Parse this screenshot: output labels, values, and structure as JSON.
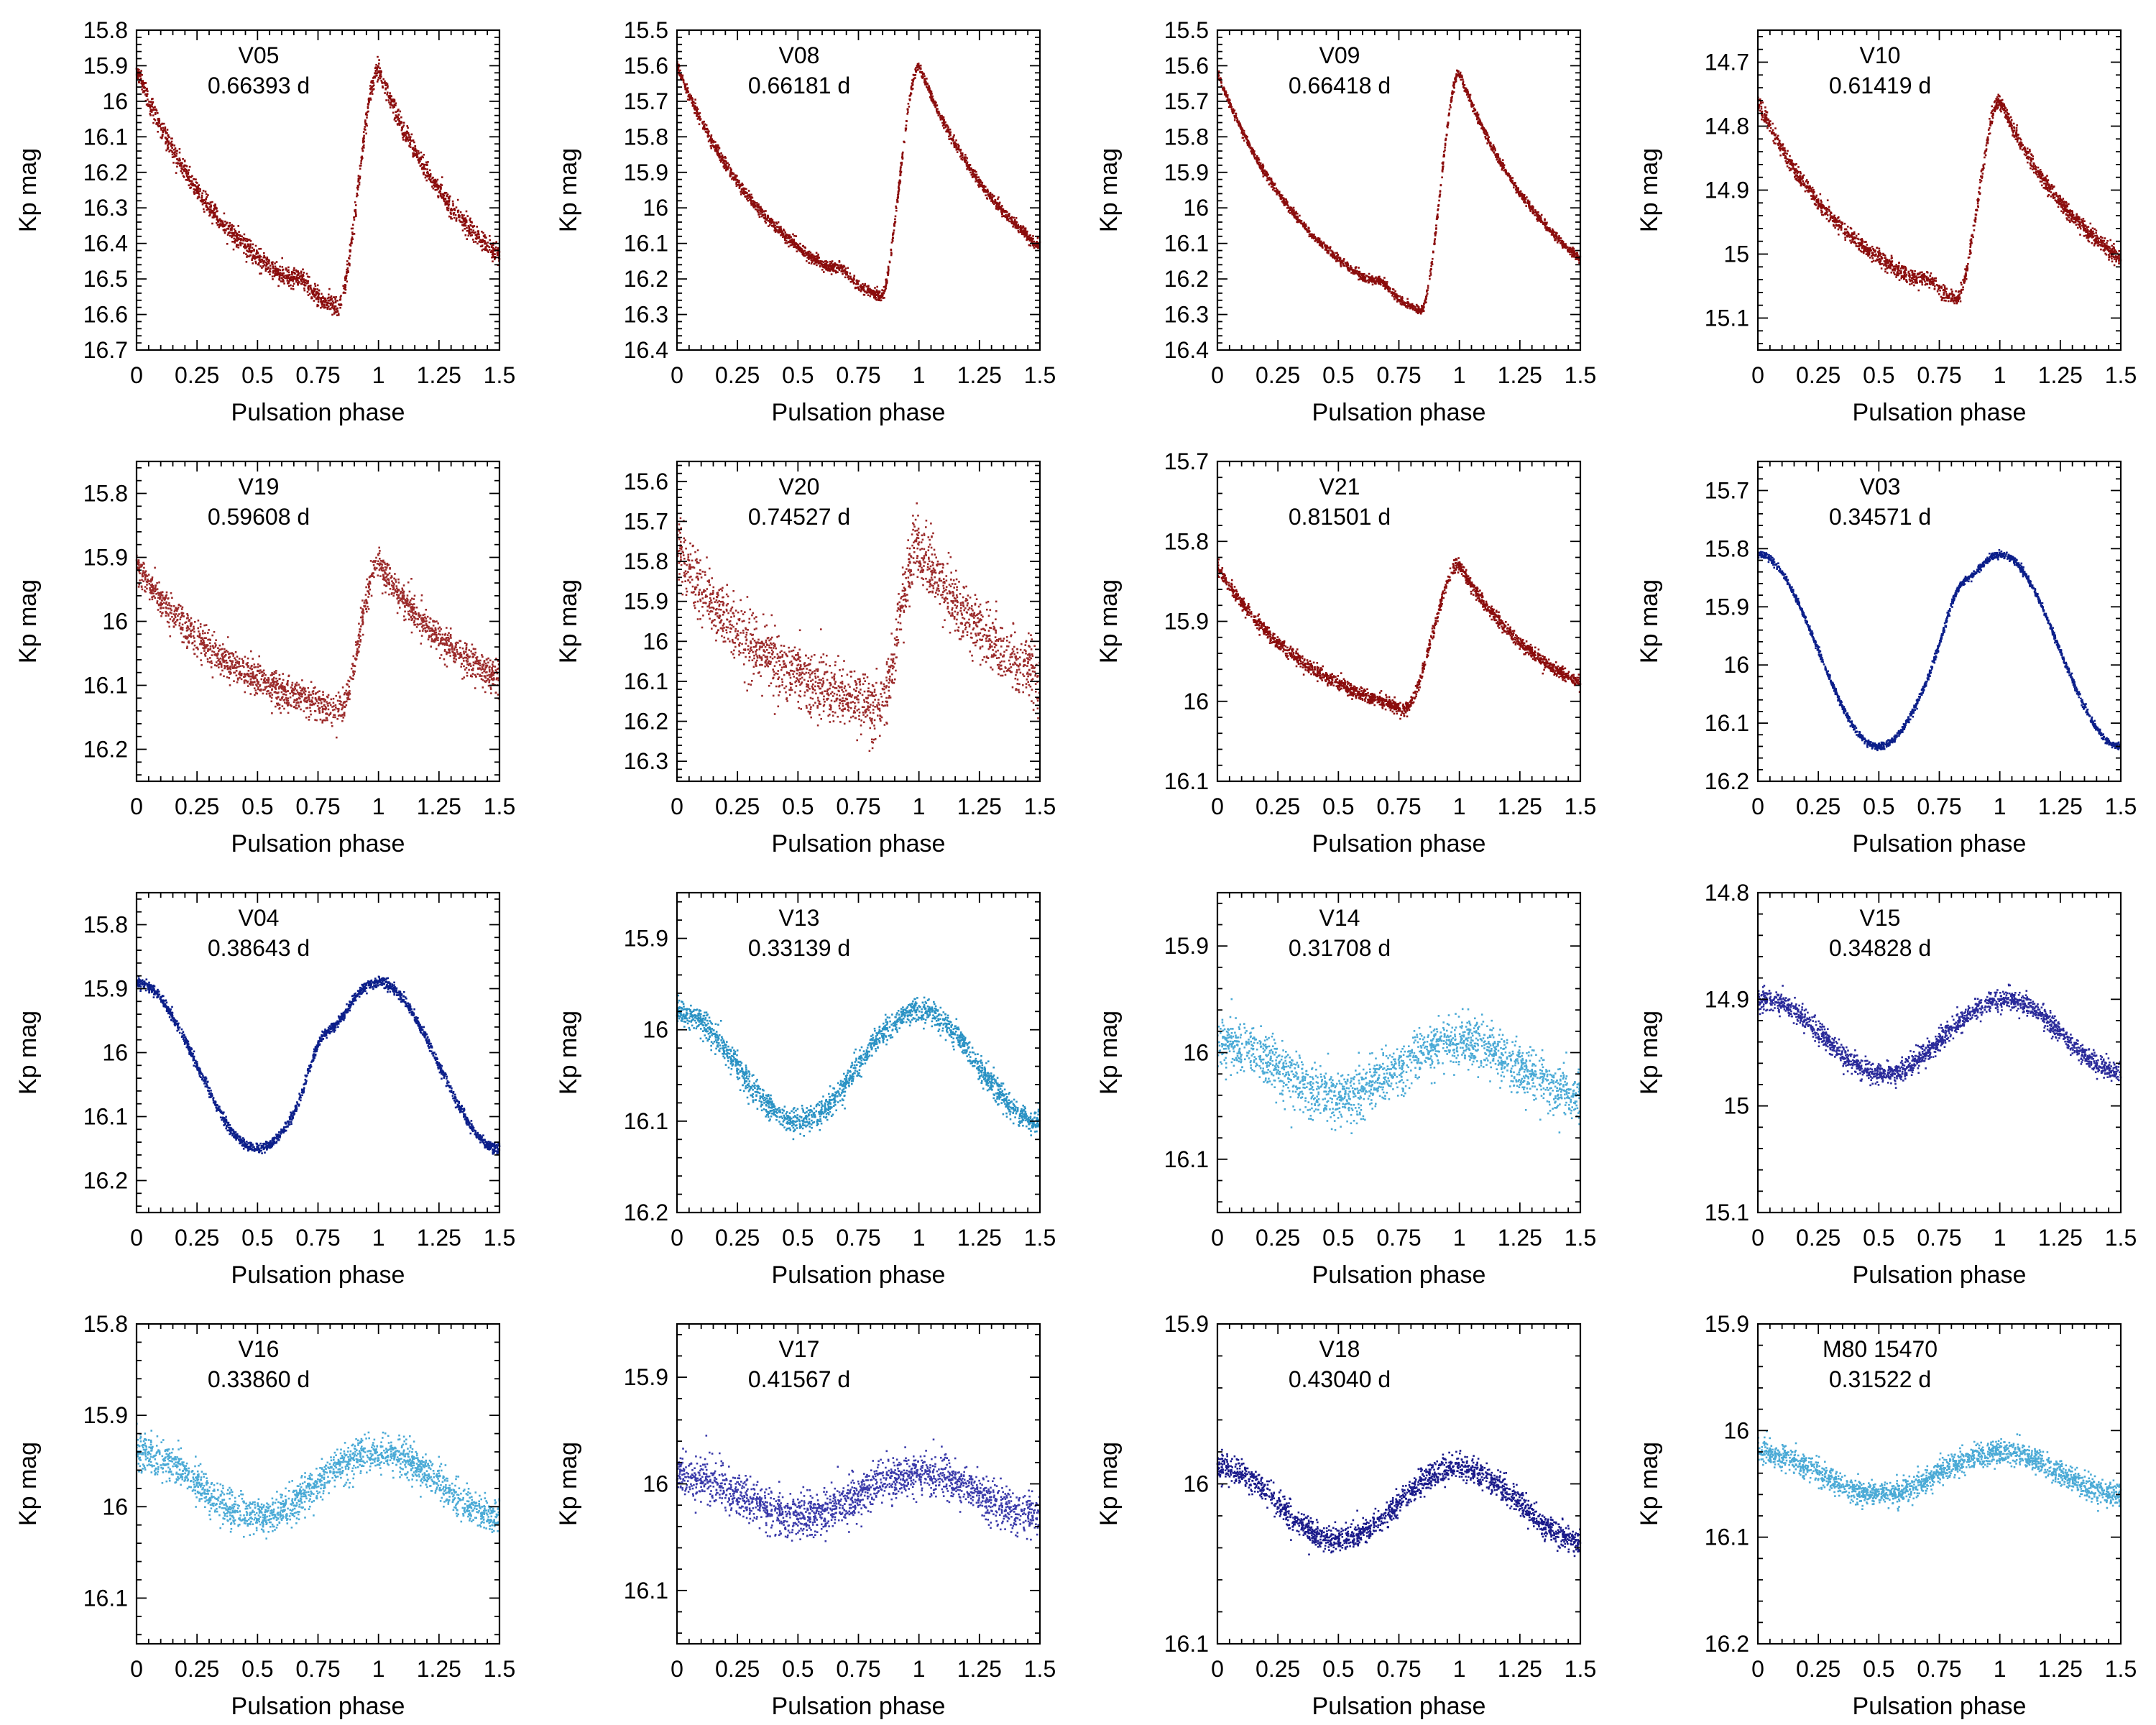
{
  "figure": {
    "xlabel": "Pulsation phase",
    "ylabel": "Kp mag"
  },
  "chart_data": [
    {
      "type": "scatter",
      "star": "V05",
      "period": "0.66393 d",
      "color": "#8b0d0d",
      "shape": "rrab",
      "ylim": [
        15.8,
        16.7
      ],
      "yticks": [
        "15.8",
        "15.9",
        "16",
        "16.1",
        "16.2",
        "16.3",
        "16.4",
        "16.5",
        "16.6",
        "16.7"
      ],
      "xticks": [
        "0",
        "0.25",
        "0.5",
        "0.75",
        "1",
        "1.25",
        "1.5"
      ],
      "xlim": [
        0,
        1.5
      ],
      "max_mag": 15.91,
      "min_mag": 16.58,
      "min_phase": 0.83,
      "bump_phase": 0.68,
      "bump_depth": 0.35,
      "scatter": 0.014,
      "n_points": 1800
    },
    {
      "type": "scatter",
      "star": "V08",
      "period": "0.66181 d",
      "color": "#8b0d0d",
      "shape": "rrab",
      "ylim": [
        15.5,
        16.4
      ],
      "yticks": [
        "15.5",
        "15.6",
        "15.7",
        "15.8",
        "15.9",
        "16",
        "16.1",
        "16.2",
        "16.3",
        "16.4"
      ],
      "xticks": [
        "0",
        "0.25",
        "0.5",
        "0.75",
        "1",
        "1.25",
        "1.5"
      ],
      "xlim": [
        0,
        1.5
      ],
      "max_mag": 15.6,
      "min_mag": 16.25,
      "min_phase": 0.84,
      "bump_phase": 0.68,
      "bump_depth": 0.3,
      "scatter": 0.008,
      "n_points": 1800
    },
    {
      "type": "scatter",
      "star": "V09",
      "period": "0.66418 d",
      "color": "#8b0d0d",
      "shape": "rrab",
      "ylim": [
        15.5,
        16.4
      ],
      "yticks": [
        "15.5",
        "15.6",
        "15.7",
        "15.8",
        "15.9",
        "16",
        "16.1",
        "16.2",
        "16.3",
        "16.4"
      ],
      "xticks": [
        "0",
        "0.25",
        "0.5",
        "0.75",
        "1",
        "1.25",
        "1.5"
      ],
      "xlim": [
        0,
        1.5
      ],
      "max_mag": 15.62,
      "min_mag": 16.29,
      "min_phase": 0.84,
      "bump_phase": 0.68,
      "bump_depth": 0.3,
      "scatter": 0.006,
      "n_points": 1800
    },
    {
      "type": "scatter",
      "star": "V10",
      "period": "0.61419 d",
      "color": "#8b0d0d",
      "shape": "rrab",
      "ylim": [
        14.65,
        15.15
      ],
      "yticks": [
        "14.7",
        "14.8",
        "14.9",
        "15",
        "15.1"
      ],
      "xticks": [
        "0",
        "0.25",
        "0.5",
        "0.75",
        "1",
        "1.25",
        "1.5"
      ],
      "xlim": [
        0,
        1.5
      ],
      "max_mag": 14.76,
      "min_mag": 15.07,
      "min_phase": 0.82,
      "bump_phase": 0.7,
      "bump_depth": 0.3,
      "scatter": 0.006,
      "n_points": 1800
    },
    {
      "type": "scatter",
      "star": "V19",
      "period": "0.59608 d",
      "color": "#9b2a2a",
      "shape": "rrab",
      "ylim": [
        15.75,
        16.25
      ],
      "yticks": [
        "15.8",
        "15.9",
        "16",
        "16.1",
        "16.2"
      ],
      "xticks": [
        "0",
        "0.25",
        "0.5",
        "0.75",
        "1",
        "1.25",
        "1.5"
      ],
      "xlim": [
        0,
        1.5
      ],
      "max_mag": 15.91,
      "min_mag": 16.14,
      "min_phase": 0.84,
      "bump_phase": 0.68,
      "bump_depth": 0.12,
      "scatter": 0.013,
      "n_points": 1800
    },
    {
      "type": "scatter",
      "star": "V20",
      "period": "0.74527 d",
      "color": "#9b2a2a",
      "shape": "rrab",
      "ylim": [
        15.55,
        16.35
      ],
      "yticks": [
        "15.6",
        "15.7",
        "15.8",
        "15.9",
        "16",
        "16.1",
        "16.2",
        "16.3"
      ],
      "xticks": [
        "0",
        "0.25",
        "0.5",
        "0.75",
        "1",
        "1.25",
        "1.5"
      ],
      "xlim": [
        0,
        1.5
      ],
      "max_mag": 15.77,
      "min_mag": 16.17,
      "min_phase": 0.83,
      "bump_phase": 0.68,
      "bump_depth": 0.1,
      "scatter": 0.04,
      "n_points": 1800
    },
    {
      "type": "scatter",
      "star": "V21",
      "period": "0.81501 d",
      "color": "#8b0d0d",
      "shape": "rrab",
      "ylim": [
        15.7,
        16.1
      ],
      "yticks": [
        "15.7",
        "15.8",
        "15.9",
        "16",
        "16.1"
      ],
      "xticks": [
        "0",
        "0.25",
        "0.5",
        "0.75",
        "1",
        "1.25",
        "1.5"
      ],
      "xlim": [
        0,
        1.5
      ],
      "max_mag": 15.83,
      "min_mag": 16.01,
      "min_phase": 0.77,
      "bump_phase": 0.68,
      "bump_depth": 0.05,
      "scatter": 0.004,
      "n_points": 1800
    },
    {
      "type": "scatter",
      "star": "V03",
      "period": "0.34571 d",
      "color": "#0c1f8a",
      "shape": "rrc",
      "ylim": [
        15.65,
        16.2
      ],
      "yticks": [
        "15.7",
        "15.8",
        "15.9",
        "16",
        "16.1",
        "16.2"
      ],
      "xticks": [
        "0",
        "0.25",
        "0.5",
        "0.75",
        "1",
        "1.25",
        "1.5"
      ],
      "xlim": [
        0,
        1.5
      ],
      "max_mag": 15.81,
      "min_mag": 16.14,
      "min_phase": 0.58,
      "hump_phase": 0.85,
      "hump_mag": 15.84,
      "scatter": 0.003,
      "n_points": 1800
    },
    {
      "type": "scatter",
      "star": "V04",
      "period": "0.38643 d",
      "color": "#0c1f8a",
      "shape": "rrc",
      "ylim": [
        15.75,
        16.25
      ],
      "yticks": [
        "15.8",
        "15.9",
        "16",
        "16.1",
        "16.2"
      ],
      "xticks": [
        "0",
        "0.25",
        "0.5",
        "0.75",
        "1",
        "1.25",
        "1.5"
      ],
      "xlim": [
        0,
        1.5
      ],
      "max_mag": 15.89,
      "min_mag": 16.15,
      "min_phase": 0.52,
      "hump_phase": 0.78,
      "hump_mag": 15.95,
      "scatter": 0.004,
      "n_points": 1800
    },
    {
      "type": "scatter",
      "star": "V13",
      "period": "0.33139 d",
      "color": "#2a92c4",
      "shape": "sine",
      "ylim": [
        15.85,
        16.2
      ],
      "yticks": [
        "15.9",
        "16",
        "16.1",
        "16.2"
      ],
      "xticks": [
        "0",
        "0.25",
        "0.5",
        "0.75",
        "1",
        "1.25",
        "1.5"
      ],
      "xlim": [
        0,
        1.5
      ],
      "max_mag": 15.98,
      "min_mag": 16.1,
      "min_phase": 0.5,
      "scatter": 0.007,
      "n_points": 1800
    },
    {
      "type": "scatter",
      "star": "V14",
      "period": "0.31708 d",
      "color": "#4aaad6",
      "shape": "sine",
      "ylim": [
        15.85,
        16.15
      ],
      "yticks": [
        "15.9",
        "16",
        "16.1"
      ],
      "xticks": [
        "0",
        "0.25",
        "0.5",
        "0.75",
        "1",
        "1.25",
        "1.5"
      ],
      "xlim": [
        0,
        1.5
      ],
      "max_mag": 15.99,
      "min_mag": 16.04,
      "min_phase": 0.5,
      "scatter": 0.012,
      "n_points": 1800
    },
    {
      "type": "scatter",
      "star": "V15",
      "period": "0.34828 d",
      "color": "#2a2a9a",
      "shape": "sine",
      "ylim": [
        14.8,
        15.1
      ],
      "yticks": [
        "14.8",
        "14.9",
        "15",
        "15.1"
      ],
      "xticks": [
        "0",
        "0.25",
        "0.5",
        "0.75",
        "1",
        "1.25",
        "1.5"
      ],
      "xlim": [
        0,
        1.5
      ],
      "max_mag": 14.9,
      "min_mag": 14.97,
      "min_phase": 0.52,
      "scatter": 0.005,
      "n_points": 1800
    },
    {
      "type": "scatter",
      "star": "V16",
      "period": "0.33860 d",
      "color": "#4aaad6",
      "shape": "sine",
      "ylim": [
        15.8,
        16.15
      ],
      "yticks": [
        "15.8",
        "15.9",
        "16",
        "16.1"
      ],
      "xticks": [
        "0",
        "0.25",
        "0.5",
        "0.75",
        "1",
        "1.25",
        "1.5"
      ],
      "xlim": [
        0,
        1.5
      ],
      "max_mag": 15.94,
      "min_mag": 16.01,
      "min_phase": 0.5,
      "scatter": 0.01,
      "n_points": 1800
    },
    {
      "type": "scatter",
      "star": "V17",
      "period": "0.41567 d",
      "color": "#3a3aaa",
      "shape": "sine",
      "ylim": [
        15.85,
        16.15
      ],
      "yticks": [
        "15.9",
        "16",
        "16.1"
      ],
      "xticks": [
        "0",
        "0.25",
        "0.5",
        "0.75",
        "1",
        "1.25",
        "1.5"
      ],
      "xlim": [
        0,
        1.5
      ],
      "max_mag": 15.99,
      "min_mag": 16.03,
      "min_phase": 0.5,
      "scatter": 0.01,
      "n_points": 1800
    },
    {
      "type": "scatter",
      "star": "V18",
      "period": "0.43040 d",
      "color": "#1a1a8a",
      "shape": "sine",
      "ylim": [
        15.9,
        16.1
      ],
      "yticks": [
        "15.9",
        "16",
        "16.1"
      ],
      "xticks": [
        "0",
        "0.25",
        "0.5",
        "0.75",
        "1",
        "1.25",
        "1.5"
      ],
      "xlim": [
        0,
        1.5
      ],
      "max_mag": 15.99,
      "min_mag": 16.035,
      "min_phase": 0.5,
      "scatter": 0.004,
      "n_points": 1800
    },
    {
      "type": "scatter",
      "star": "M80 15470",
      "period": "0.31522 d",
      "color": "#4aaad6",
      "shape": "sine",
      "ylim": [
        15.9,
        16.2
      ],
      "yticks": [
        "15.9",
        "16",
        "16.1",
        "16.2"
      ],
      "xticks": [
        "0",
        "0.25",
        "0.5",
        "0.75",
        "1",
        "1.25",
        "1.5"
      ],
      "xlim": [
        0,
        1.5
      ],
      "max_mag": 16.02,
      "min_mag": 16.06,
      "min_phase": 0.5,
      "scatter": 0.006,
      "n_points": 1800
    }
  ]
}
